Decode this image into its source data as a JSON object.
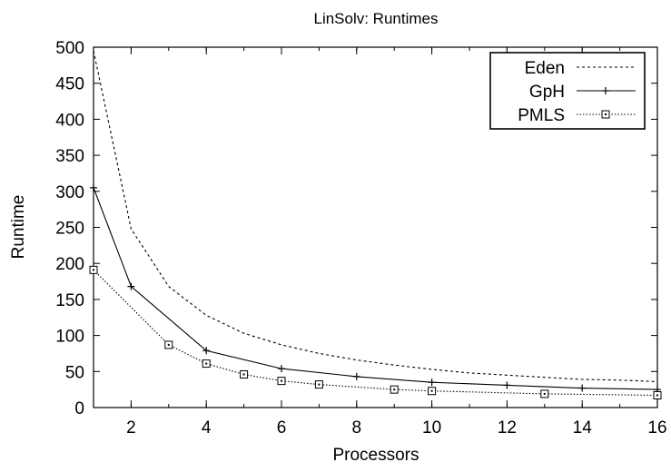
{
  "chart_data": {
    "type": "line",
    "title": "LinSolv: Runtimes",
    "xlabel": "Processors",
    "ylabel": "Runtime",
    "xlim": [
      1,
      16
    ],
    "ylim": [
      0,
      500
    ],
    "xticks": [
      2,
      4,
      6,
      8,
      10,
      12,
      14,
      16
    ],
    "yticks": [
      0,
      50,
      100,
      150,
      200,
      250,
      300,
      350,
      400,
      450,
      500
    ],
    "grid": false,
    "legend_position": "top-right",
    "series": [
      {
        "name": "Eden",
        "style": "dashed",
        "marker": "none",
        "x": [
          1,
          2,
          3,
          4,
          5,
          6,
          7,
          8,
          9,
          10,
          11,
          12,
          13,
          14,
          15,
          16
        ],
        "y": [
          495,
          248,
          168,
          128,
          103,
          87,
          75,
          66,
          59,
          53,
          48,
          45,
          42,
          39,
          38,
          36
        ]
      },
      {
        "name": "GpH",
        "style": "solid",
        "marker": "plus",
        "x": [
          1,
          2,
          4,
          6,
          8,
          10,
          12,
          14,
          16
        ],
        "y": [
          305,
          168,
          79,
          54,
          43,
          35,
          31,
          27,
          25
        ]
      },
      {
        "name": "PMLS",
        "style": "dotted",
        "marker": "square",
        "x": [
          1,
          3,
          4,
          5,
          6,
          7,
          9,
          10,
          13,
          16
        ],
        "y": [
          191,
          87,
          61,
          46,
          37,
          32,
          25,
          23,
          19,
          17
        ]
      }
    ]
  }
}
